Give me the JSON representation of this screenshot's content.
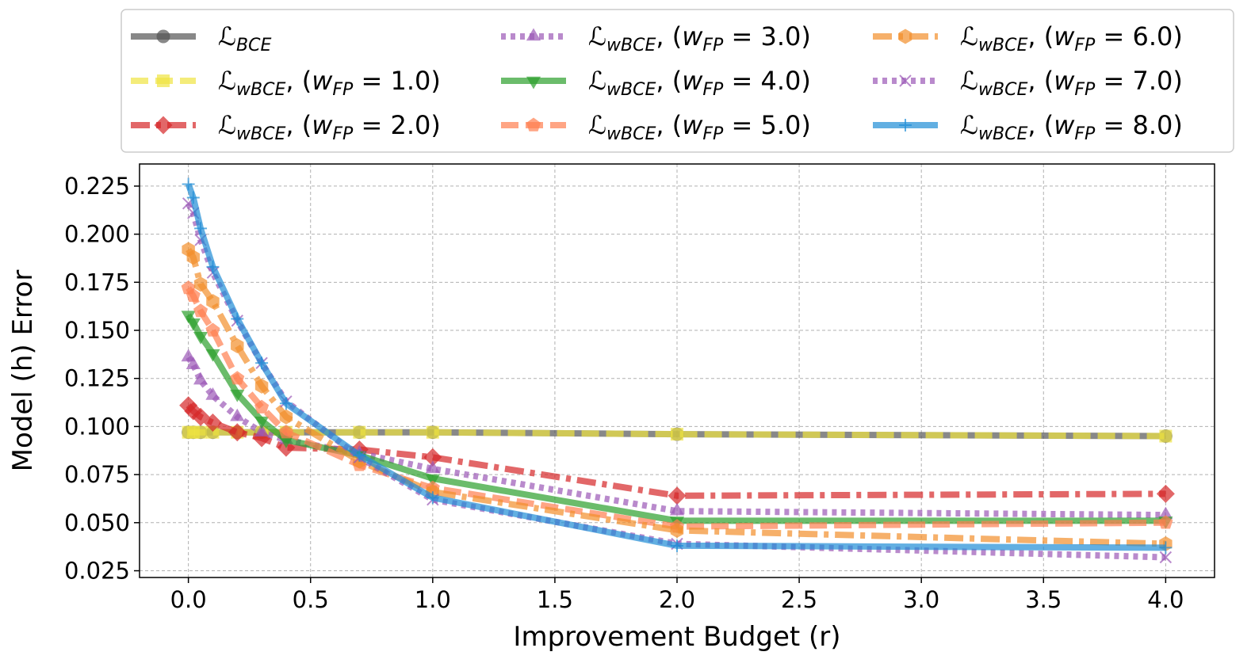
{
  "chart_data": {
    "type": "line",
    "title": "",
    "xlabel": "Improvement Budget (r)",
    "ylabel": "Model (h) Error",
    "xlim": [
      -0.2,
      4.2
    ],
    "ylim": [
      0.0215,
      0.2365
    ],
    "xticks": [
      0.0,
      0.5,
      1.0,
      1.5,
      2.0,
      2.5,
      3.0,
      3.5,
      4.0
    ],
    "xtick_labels": [
      "0.0",
      "0.5",
      "1.0",
      "1.5",
      "2.0",
      "2.5",
      "3.0",
      "3.5",
      "4.0"
    ],
    "yticks": [
      0.025,
      0.05,
      0.075,
      0.1,
      0.125,
      0.15,
      0.175,
      0.2,
      0.225
    ],
    "ytick_labels": [
      "0.025",
      "0.050",
      "0.075",
      "0.100",
      "0.125",
      "0.150",
      "0.175",
      "0.200",
      "0.225"
    ],
    "grid": true,
    "legend_position": "top, outside plot, 3 columns",
    "series": [
      {
        "name": "ℒBCE",
        "legend_main": "ℒ",
        "legend_sub": "BCE",
        "legend_param": "",
        "color": "#555555",
        "linestyle": "solid",
        "marker": "circle",
        "x": [
          0.0,
          0.02,
          0.05,
          0.1,
          0.2,
          0.3,
          0.4,
          0.7,
          1.0,
          2.0,
          4.0
        ],
        "y": [
          0.097,
          0.097,
          0.097,
          0.097,
          0.097,
          0.097,
          0.097,
          0.097,
          0.097,
          0.096,
          0.095
        ]
      },
      {
        "name": "ℒwBCE, (wFP = 1.0)",
        "legend_main": "ℒ",
        "legend_sub": "wBCE",
        "legend_param": "1.0",
        "color": "#f0e442",
        "linestyle": "dashed",
        "marker": "square",
        "x": [
          0.0,
          0.02,
          0.05,
          0.1,
          0.2,
          0.3,
          0.4,
          0.7,
          1.0,
          2.0,
          4.0
        ],
        "y": [
          0.097,
          0.097,
          0.097,
          0.097,
          0.097,
          0.097,
          0.097,
          0.097,
          0.097,
          0.096,
          0.095
        ]
      },
      {
        "name": "ℒwBCE, (wFP = 2.0)",
        "legend_main": "ℒ",
        "legend_sub": "wBCE",
        "legend_param": "2.0",
        "color": "#d62728",
        "linestyle": "dashdot",
        "marker": "diamond",
        "x": [
          0.0,
          0.02,
          0.05,
          0.1,
          0.2,
          0.3,
          0.4,
          0.7,
          1.0,
          2.0,
          4.0
        ],
        "y": [
          0.111,
          0.108,
          0.105,
          0.102,
          0.097,
          0.094,
          0.089,
          0.088,
          0.084,
          0.064,
          0.065
        ]
      },
      {
        "name": "ℒwBCE, (wFP = 3.0)",
        "legend_main": "ℒ",
        "legend_sub": "wBCE",
        "legend_param": "3.0",
        "color": "#9b59b6",
        "linestyle": "dotted",
        "marker": "triangle-up",
        "x": [
          0.0,
          0.02,
          0.05,
          0.1,
          0.2,
          0.3,
          0.4,
          0.7,
          1.0,
          2.0,
          4.0
        ],
        "y": [
          0.136,
          0.132,
          0.124,
          0.116,
          0.105,
          0.097,
          0.093,
          0.086,
          0.078,
          0.056,
          0.054
        ]
      },
      {
        "name": "ℒwBCE, (wFP = 4.0)",
        "legend_main": "ℒ",
        "legend_sub": "wBCE",
        "legend_param": "4.0",
        "color": "#2ca02c",
        "linestyle": "solid",
        "marker": "triangle-down",
        "x": [
          0.0,
          0.02,
          0.05,
          0.1,
          0.2,
          0.3,
          0.4,
          0.7,
          1.0,
          2.0,
          4.0
        ],
        "y": [
          0.158,
          0.154,
          0.147,
          0.138,
          0.117,
          0.103,
          0.093,
          0.085,
          0.073,
          0.051,
          0.051
        ]
      },
      {
        "name": "ℒwBCE, (wFP = 5.0)",
        "legend_main": "ℒ",
        "legend_sub": "wBCE",
        "legend_param": "5.0",
        "color": "#ff7f50",
        "linestyle": "dashed",
        "marker": "pentagon",
        "x": [
          0.0,
          0.02,
          0.05,
          0.1,
          0.2,
          0.3,
          0.4,
          0.7,
          1.0,
          2.0,
          4.0
        ],
        "y": [
          0.172,
          0.168,
          0.16,
          0.15,
          0.125,
          0.11,
          0.097,
          0.08,
          0.068,
          0.048,
          0.05
        ]
      },
      {
        "name": "ℒwBCE, (wFP = 6.0)",
        "legend_main": "ℒ",
        "legend_sub": "wBCE",
        "legend_param": "6.0",
        "color": "#f28e2b",
        "linestyle": "dashdot",
        "marker": "hexagon",
        "x": [
          0.0,
          0.02,
          0.05,
          0.1,
          0.2,
          0.3,
          0.4,
          0.7,
          1.0,
          2.0,
          4.0
        ],
        "y": [
          0.192,
          0.188,
          0.174,
          0.165,
          0.142,
          0.121,
          0.105,
          0.082,
          0.066,
          0.046,
          0.039
        ]
      },
      {
        "name": "ℒwBCE, (wFP = 7.0)",
        "legend_main": "ℒ",
        "legend_sub": "wBCE",
        "legend_param": "7.0",
        "color": "#9b59b6",
        "linestyle": "dotted",
        "marker": "x",
        "x": [
          0.0,
          0.02,
          0.05,
          0.1,
          0.2,
          0.3,
          0.4,
          0.7,
          1.0,
          2.0,
          4.0
        ],
        "y": [
          0.216,
          0.211,
          0.197,
          0.18,
          0.155,
          0.133,
          0.113,
          0.084,
          0.062,
          0.039,
          0.032
        ]
      },
      {
        "name": "ℒwBCE, (wFP = 8.0)",
        "legend_main": "ℒ",
        "legend_sub": "wBCE",
        "legend_param": "8.0",
        "color": "#1f8dd6",
        "linestyle": "solid",
        "marker": "plus",
        "x": [
          0.0,
          0.02,
          0.05,
          0.1,
          0.2,
          0.3,
          0.4,
          0.7,
          1.0,
          2.0,
          4.0
        ],
        "y": [
          0.226,
          0.219,
          0.203,
          0.183,
          0.156,
          0.133,
          0.112,
          0.085,
          0.063,
          0.038,
          0.037
        ]
      }
    ]
  }
}
